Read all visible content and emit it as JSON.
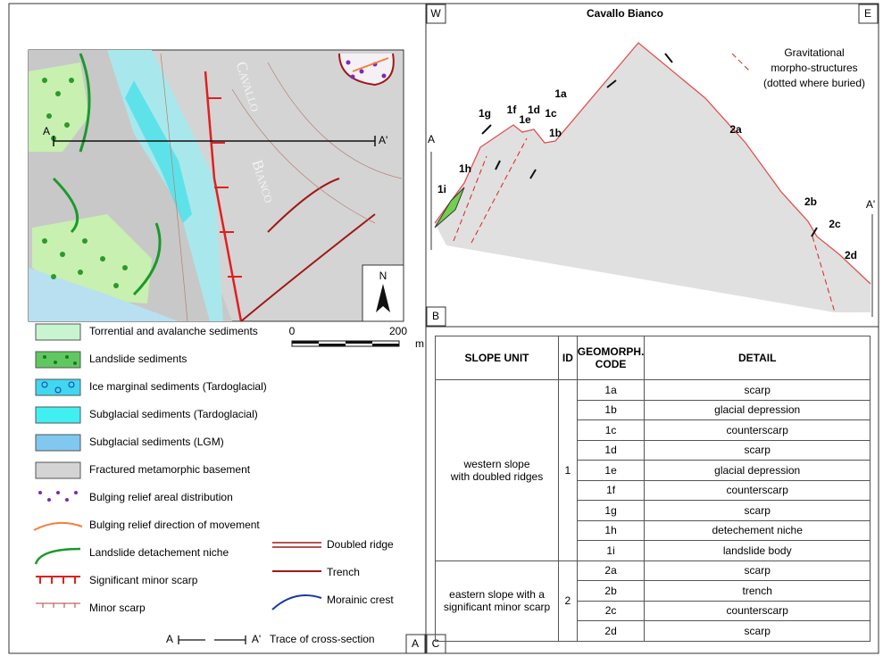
{
  "map": {
    "panel": "A",
    "labels": [
      "Cavallo",
      "Bianco"
    ],
    "section_start": "A",
    "section_end": "A'",
    "north": "N",
    "scale": {
      "start": "0",
      "end": "200",
      "unit": "m"
    }
  },
  "legend": {
    "items": [
      "Torrential and avalanche sediments",
      "Landslide sediments",
      "Ice marginal sediments (Tardoglacial)",
      "Subglacial sediments (Tardoglacial)",
      "Subglacial sediments (LGM)",
      "Fractured metamorphic basement",
      "Bulging relief areal distribution",
      "Bulging relief direction of movement",
      "Landslide detachement niche",
      "Significant minor scarp",
      "Minor scarp"
    ],
    "lines": [
      "Doubled ridge",
      "Trench",
      "Morainic crest"
    ],
    "trace": {
      "start": "A",
      "end": "A'",
      "label": "Trace of cross-section"
    }
  },
  "section": {
    "panel": "B",
    "west": "W",
    "east": "E",
    "title": "Cavallo Bianco",
    "legend": [
      "Gravitational",
      "morpho-structures",
      "(dotted where buried)"
    ],
    "start": "A",
    "end": "A'",
    "units": [
      "1a",
      "1b",
      "1c",
      "1d",
      "1e",
      "1f",
      "1g",
      "1h",
      "1i",
      "2a",
      "2b",
      "2c",
      "2d"
    ]
  },
  "table": {
    "panel": "C",
    "headers": [
      "SLOPE UNIT",
      "ID",
      "GEOMORPH. CODE",
      "DETAIL"
    ],
    "groups": [
      {
        "unit": [
          "western slope",
          "with doubled ridges"
        ],
        "id": "1",
        "rows": [
          [
            "1a",
            "scarp"
          ],
          [
            "1b",
            "glacial depression"
          ],
          [
            "1c",
            "counterscarp"
          ],
          [
            "1d",
            "scarp"
          ],
          [
            "1e",
            "glacial depression"
          ],
          [
            "1f",
            "counterscarp"
          ],
          [
            "1g",
            "scarp"
          ],
          [
            "1h",
            "detechement niche"
          ],
          [
            "1i",
            "landslide body"
          ]
        ]
      },
      {
        "unit": [
          "eastern slope with a",
          "significant minor scarp"
        ],
        "id": "2",
        "rows": [
          [
            "2a",
            "scarp"
          ],
          [
            "2b",
            "trench"
          ],
          [
            "2c",
            "counterscarp"
          ],
          [
            "2d",
            "scarp"
          ]
        ]
      }
    ]
  }
}
